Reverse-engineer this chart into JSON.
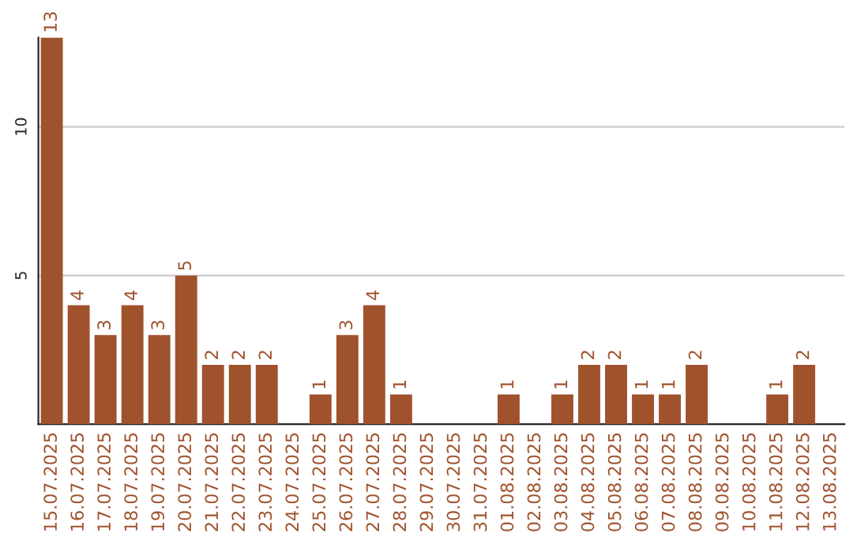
{
  "chart_data": {
    "type": "bar",
    "categories": [
      "15.07.2025",
      "16.07.2025",
      "17.07.2025",
      "18.07.2025",
      "19.07.2025",
      "20.07.2025",
      "21.07.2025",
      "22.07.2025",
      "23.07.2025",
      "24.07.2025",
      "25.07.2025",
      "26.07.2025",
      "27.07.2025",
      "28.07.2025",
      "29.07.2025",
      "30.07.2025",
      "31.07.2025",
      "01.08.2025",
      "02.08.2025",
      "03.08.2025",
      "04.08.2025",
      "05.08.2025",
      "06.08.2025",
      "07.08.2025",
      "08.08.2025",
      "09.08.2025",
      "10.08.2025",
      "11.08.2025",
      "12.08.2025",
      "13.08.2025"
    ],
    "values": [
      13,
      4,
      3,
      4,
      3,
      5,
      2,
      2,
      2,
      null,
      1,
      3,
      4,
      1,
      null,
      null,
      null,
      1,
      null,
      1,
      2,
      2,
      1,
      1,
      2,
      null,
      null,
      1,
      2,
      null
    ],
    "value_labels": [
      "13",
      "4",
      "3",
      "4",
      "3",
      "5",
      "2",
      "2",
      "2",
      null,
      "1",
      "3",
      "4",
      "1",
      null,
      null,
      null,
      "1",
      null,
      "1",
      "2",
      "2",
      "1",
      "1",
      "2",
      null,
      null,
      "1",
      "2",
      null
    ],
    "color": "#a0522d",
    "ylim": [
      0,
      13
    ],
    "yticks": [
      5,
      10
    ],
    "grid": "y",
    "legend": false
  }
}
